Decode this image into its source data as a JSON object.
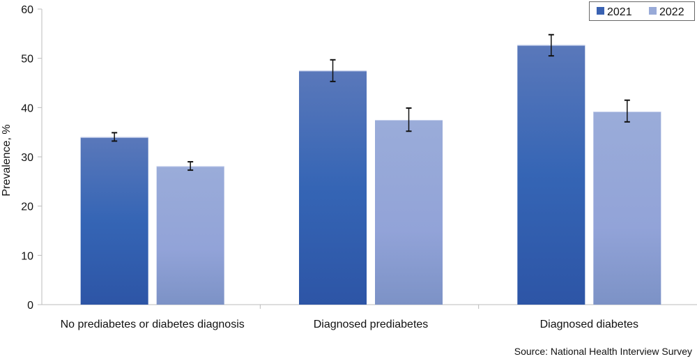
{
  "chart_data": {
    "type": "bar",
    "title": "",
    "xlabel": "",
    "ylabel": "Prevalence, %",
    "ylim": [
      0,
      60
    ],
    "yticks": [
      0,
      10,
      20,
      30,
      40,
      50,
      60
    ],
    "grid": false,
    "legend_position": "top-right",
    "categories": [
      "No prediabetes or diabetes diagnosis",
      "Diagnosed prediabetes",
      "Diagnosed diabetes"
    ],
    "series": [
      {
        "name": "2021",
        "color": "#3a62b2",
        "values": [
          34.0,
          47.5,
          52.7
        ],
        "error_low": [
          33.2,
          45.3,
          50.5
        ],
        "error_high": [
          34.9,
          49.7,
          54.8
        ]
      },
      {
        "name": "2022",
        "color": "#98aad8",
        "values": [
          28.1,
          37.5,
          39.2
        ],
        "error_low": [
          27.3,
          35.2,
          37.1
        ],
        "error_high": [
          29.0,
          39.9,
          41.5
        ]
      }
    ],
    "source": "Source: National Health Interview Survey"
  }
}
